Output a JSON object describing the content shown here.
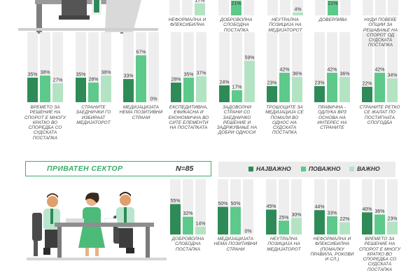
{
  "colors": {
    "najvazno": "#2e8b57",
    "povazno": "#5dc98a",
    "vazno": "#b4e3c4",
    "track": "#eeeeee",
    "header_text": "#3cae6a",
    "legend_bg": "#ececec"
  },
  "private_sector": {
    "title": "ПРИВАТЕН СЕКТОР",
    "n_label": "N=85"
  },
  "legend": [
    "НАЈВАЖНО",
    "ПОВАЖНО",
    "ВАЖНО"
  ],
  "chart_data": [
    {
      "type": "bar",
      "group": "top (cropped)",
      "series_names": [
        "НАЈВАЖНО",
        "ПОВАЖНО",
        "ВАЖНО"
      ],
      "categories": [
        "НЕФОРМАЛНА И ФЛЕКСИБИЛНА",
        "ДОБРОВОЛНА СЛОБОДНА ПОСТАПКА",
        "НЕУТРАЛНА ПОЗИЦИЈА НА МЕДИЈАТОРОТ",
        "ДОВЕРЛИВА",
        "НУДИ ПОВЕЌЕ ОПЦИИ ЗА РЕШАВАЊЕ НА СПОРОТ ОД СУДСКАТА ПОСТАПКА"
      ],
      "values": [
        [
          null,
          null,
          17
        ],
        [
          null,
          21,
          null
        ],
        [
          null,
          null,
          4
        ],
        [
          null,
          21,
          null
        ],
        [
          null,
          null,
          null
        ]
      ],
      "value_labels": [
        [
          "",
          "",
          "17%"
        ],
        [
          "",
          "21%",
          ""
        ],
        [
          "",
          "",
          "4%"
        ],
        [
          "",
          "21%",
          ""
        ],
        [
          "",
          "",
          ""
        ]
      ],
      "ylim": [
        0,
        100
      ]
    },
    {
      "type": "bar",
      "group": "middle",
      "series_names": [
        "НАЈВАЖНО",
        "ПОВАЖНО",
        "ВАЖНО"
      ],
      "categories": [
        "ВРЕМЕТО ЗА РЕШЕНИЕ НА СПОРОТ Е МНОГУ КРАТКО ВО СПОРЕДБА СО СУДСКАТА ПОСТАПКА",
        "СТРАНИТЕ ЗАЕДНИЧКИ ГО ИЗБИРААТ МЕДИЈАТОРОТ",
        "МЕДИЈАЦИЈАТА НЕМА ПОЗИТИВНИ СТРАНИ",
        "ЕКСПЕДИТИВНА, ЕФИКАСНА И ЕКОНОМИЧНА ВО СИТЕ ЕЛЕМЕНТИ НА ПОСТАПКАТА",
        "ЗАДОВОЛНИ СТРАНИ СО ЗАЕДНИЧКО РЕШЕНИЕ И ЗАДРЖУВАЊЕ НА ДОБРИ ОДНОСИ",
        "ТРОШОЦИТЕ ЗА МЕДИЈАЦИЈА СЕ ПОМАЛИ ВО ОДНОС НА СУДСКАТА ПОСТАПКА",
        "ПРАВИЧНА - ОДЛУКА ВРЗ ОСНОВА НА ИНТЕРЕС НА СТРАНИТЕ",
        "СТРАНИТЕ РЕТКО СЕ ЖАЛАТ ПО ПОСТИГНАТА СПОГОДБА"
      ],
      "values": [
        [
          35,
          38,
          27
        ],
        [
          35,
          28,
          38
        ],
        [
          33,
          67,
          0
        ],
        [
          28,
          35,
          37
        ],
        [
          24,
          17,
          59
        ],
        [
          23,
          42,
          36
        ],
        [
          23,
          42,
          36
        ],
        [
          22,
          42,
          34
        ]
      ],
      "value_labels": [
        [
          "35%",
          "38%",
          "27%"
        ],
        [
          "35%",
          "28%",
          "38%"
        ],
        [
          "33%",
          "67%",
          "0%"
        ],
        [
          "28%",
          "35%",
          "37%"
        ],
        [
          "24%",
          "17%",
          "59%"
        ],
        [
          "23%",
          "42%",
          "36%"
        ],
        [
          "23%",
          "42%",
          "36%"
        ],
        [
          "22%",
          "42%",
          "34%"
        ]
      ],
      "ylim": [
        0,
        100
      ]
    },
    {
      "type": "bar",
      "group": "ПРИВАТЕН СЕКТОР N=85",
      "series_names": [
        "НАЈВАЖНО",
        "ПОВАЖНО",
        "ВАЖНО"
      ],
      "categories": [
        "ДОБРОВОЛНА СЛОБОДНА ПОСТАПКА",
        "МЕДИЈАЦИЈАТА НЕМА ПОЗИТИВНИ СТРАНИ",
        "НЕУТРАЛНА ПОЗИЦИЈА НА МЕДИЈАТОРОТ",
        "НЕФОРМАЛНА И ФЛЕКСИБИЛНА (ПОМАЛКУ ПРАВИЛА, РОКОВИ И СЛ.)",
        "ВРЕМЕТО ЗА РЕШЕНИЕ НА СПОРОТ Е МНОГУ КРАТКО ВО СПОРЕДБА СО СУДСКАТА ПОСТАПКА"
      ],
      "values": [
        [
          55,
          32,
          14
        ],
        [
          50,
          50,
          0
        ],
        [
          45,
          25,
          30
        ],
        [
          44,
          33,
          22
        ],
        [
          40,
          36,
          23
        ]
      ],
      "value_labels": [
        [
          "55%",
          "32%",
          "14%"
        ],
        [
          "50%",
          "50%",
          "0%"
        ],
        [
          "45%",
          "25%",
          "30%"
        ],
        [
          "44%",
          "33%",
          "22%"
        ],
        [
          "40%",
          "36%",
          "23%"
        ]
      ],
      "ylim": [
        0,
        100
      ]
    }
  ]
}
